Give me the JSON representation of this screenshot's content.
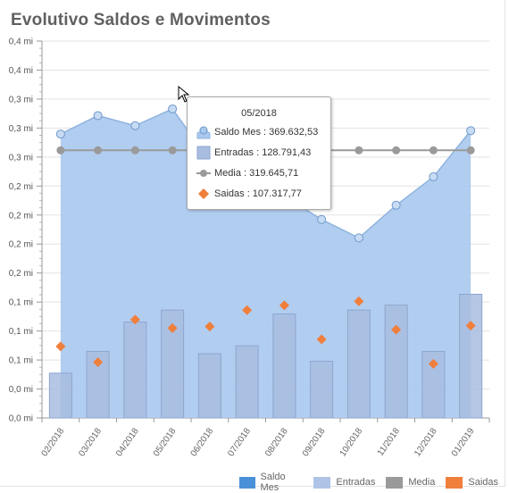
{
  "title": "Evolutivo Saldos e Movimentos",
  "colors": {
    "saldo_fill": "#a9c8ee",
    "saldo_line": "#8fb3df",
    "saldo_legend": "#4a90d9",
    "entradas_bar": "#a9bde0",
    "entradas_border": "#8ea6cf",
    "media": "#9a9a9a",
    "saidas": "#f07f3c"
  },
  "chart_data": {
    "type": "bar",
    "categories": [
      "02/2018",
      "03/2018",
      "04/2018",
      "05/2018",
      "06/2018",
      "07/2018",
      "08/2018",
      "09/2018",
      "10/2018",
      "11/2018",
      "12/2018",
      "01/2019"
    ],
    "ylim": [
      0,
      0.45
    ],
    "y_tick_labels": [
      "0,0 mi",
      "0,0 mi",
      "0,1 mi",
      "0,1 mi",
      "0,1 mi",
      "0,2 mi",
      "0,2 mi",
      "0,2 mi",
      "0,2 mi",
      "0,3 mi",
      "0,3 mi",
      "0,3 mi",
      "0,4 mi",
      "0,4 mi"
    ],
    "grid": true,
    "legend_position": "bottom-right",
    "series": [
      {
        "name": "Saldo Mes",
        "type": "area",
        "values": [
          0.339,
          0.361,
          0.349,
          0.369,
          0.307,
          0.283,
          0.265,
          0.237,
          0.215,
          0.254,
          0.288,
          0.343
        ]
      },
      {
        "name": "Entradas",
        "type": "bar",
        "values": [
          0.0535,
          0.0795,
          0.1145,
          0.1288,
          0.0767,
          0.0862,
          0.1242,
          0.0677,
          0.1288,
          0.1347,
          0.0795,
          0.1477
        ]
      },
      {
        "name": "Media",
        "type": "line",
        "values": [
          0.3196,
          0.3196,
          0.3196,
          0.3196,
          0.3196,
          0.3196,
          0.3196,
          0.3196,
          0.3196,
          0.3196,
          0.3196,
          0.3196
        ]
      },
      {
        "name": "Saidas",
        "type": "scatter",
        "values": [
          0.0855,
          0.0667,
          0.1174,
          0.1073,
          0.1092,
          0.1287,
          0.1345,
          0.0939,
          0.1393,
          0.1054,
          0.0647,
          0.1102
        ]
      }
    ]
  },
  "tooltip": {
    "title": "05/2018",
    "rows": [
      {
        "label": "Saldo Mes : 369.632,53",
        "icon": "area-marker-icon"
      },
      {
        "label": "Entradas : 128.791,43",
        "icon": "bar-swatch-icon"
      },
      {
        "label": "Media : 319.645,71",
        "icon": "line-marker-icon"
      },
      {
        "label": "Saidas : 107.317,77",
        "icon": "diamond-icon"
      }
    ]
  },
  "legend": [
    {
      "label": "Saldo Mes",
      "color": "#4a90d9"
    },
    {
      "label": "Entradas",
      "color": "#afc3e6"
    },
    {
      "label": "Media",
      "color": "#9a9a9a"
    },
    {
      "label": "Saidas",
      "color": "#f07f3c"
    }
  ]
}
